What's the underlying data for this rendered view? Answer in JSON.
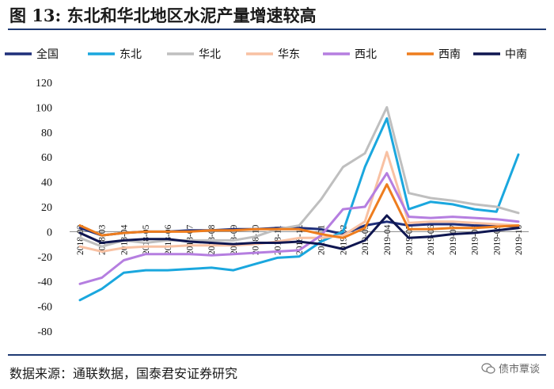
{
  "title": "图 13:  东北和华北地区水泥产量增速较高",
  "source": "数据来源：通联数据，国泰君安证券研究",
  "watermark": "债市覃谈",
  "chart_data": {
    "type": "line",
    "title": "东北和华北地区水泥产量增速较高",
    "xlabel": "",
    "ylabel": "",
    "ylim": [
      -80,
      120
    ],
    "yticks": [
      120,
      100,
      80,
      60,
      40,
      20,
      0,
      -20,
      -40,
      -60,
      -80
    ],
    "legend_position": "top",
    "grid": false,
    "categories": [
      "2018-02",
      "2018-03",
      "2018-04",
      "2018-05",
      "2018-06",
      "2018-07",
      "2018-08",
      "2018-09",
      "2018-10",
      "2018-11",
      "2018-12",
      "2019-01",
      "2019-02",
      "2019-03",
      "2019-04",
      "2019-05",
      "2019-06",
      "2019-07",
      "2019-08",
      "2019-09",
      "2019-10"
    ],
    "series": [
      {
        "name": "全国",
        "color": "#1f2f7a",
        "values": [
          3,
          -3,
          -1,
          0,
          0,
          1,
          1,
          2,
          2,
          3,
          3,
          2,
          -2,
          5,
          8,
          5,
          6,
          6,
          5,
          5,
          4
        ]
      },
      {
        "name": "东北",
        "color": "#1aa7de",
        "values": [
          -55,
          -46,
          -33,
          -31,
          -31,
          -30,
          -29,
          -31,
          -26,
          -21,
          -20,
          -8,
          0,
          52,
          91,
          18,
          24,
          22,
          18,
          16,
          62
        ]
      },
      {
        "name": "华北",
        "color": "#bfbfbf",
        "values": [
          -5,
          -12,
          -7,
          -9,
          -7,
          -7,
          -7,
          -7,
          -4,
          2,
          5,
          26,
          52,
          63,
          100,
          31,
          27,
          25,
          22,
          20,
          15
        ]
      },
      {
        "name": "华东",
        "color": "#f8c1a3",
        "values": [
          -12,
          -16,
          -13,
          -12,
          -12,
          -11,
          -11,
          -11,
          -10,
          -8,
          -5,
          -5,
          -3,
          8,
          64,
          7,
          8,
          8,
          7,
          6,
          5
        ]
      },
      {
        "name": "西北",
        "color": "#b57ee0",
        "values": [
          -42,
          -37,
          -23,
          -18,
          -18,
          -18,
          -19,
          -18,
          -17,
          -16,
          -15,
          -3,
          18,
          20,
          47,
          12,
          11,
          12,
          11,
          10,
          8
        ]
      },
      {
        "name": "西南",
        "color": "#ee7d1e",
        "values": [
          5,
          -3,
          -1,
          0,
          0,
          0,
          1,
          1,
          2,
          2,
          2,
          -2,
          -5,
          3,
          38,
          2,
          2,
          3,
          3,
          4,
          5
        ]
      },
      {
        "name": "中南",
        "color": "#0f1650",
        "values": [
          -1,
          -9,
          -7,
          -6,
          -6,
          -8,
          -9,
          -10,
          -9,
          -9,
          -8,
          -10,
          -14,
          -7,
          13,
          -5,
          -4,
          -2,
          -1,
          1,
          3
        ]
      }
    ]
  }
}
